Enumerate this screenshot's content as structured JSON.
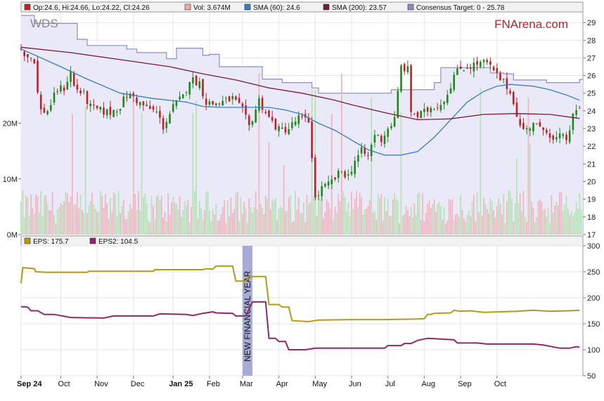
{
  "brand": {
    "logo_text": "FNArena.com",
    "logo_color": "#c0202a"
  },
  "chart_data": [
    {
      "type": "candlestick",
      "ticker": "WDS",
      "legend": [
        {
          "swatch_color": "#c0202a",
          "text": "Op:24.6, Hi:24.66, Lo:24.22, Cl:24.26"
        },
        {
          "swatch_color": "#f2a8a8",
          "text": "Vol: 3.674M"
        },
        {
          "swatch_color": "#3a7fc0",
          "text": "SMA (60): 24.6"
        },
        {
          "swatch_color": "#7a1a3a",
          "text": "SMA (200): 23.57"
        },
        {
          "swatch_color": "#8a8fc0",
          "text": "Consensus Target: 0 - 25.78"
        }
      ],
      "y_ticks": [
        17,
        18,
        19,
        20,
        21,
        22,
        23,
        24,
        25,
        26,
        27,
        28,
        29
      ],
      "ylim": [
        17,
        29.6
      ],
      "volume_ticks": [
        "0M",
        "10M",
        "20M"
      ],
      "volume_ylim": [
        0,
        40
      ],
      "last_close": 24.26,
      "sma60_last": 24.6,
      "sma200_last": 23.57,
      "consensus_target_last": 25.78,
      "consensus_target_upper": [
        [
          0,
          29.4
        ],
        [
          8,
          28.95
        ],
        [
          34,
          28.05
        ],
        [
          40,
          27.7
        ],
        [
          52,
          27.7
        ],
        [
          64,
          27.5
        ],
        [
          70,
          27.3
        ],
        [
          86,
          27.3
        ],
        [
          88,
          26.95
        ],
        [
          94,
          27.55
        ],
        [
          110,
          27.15
        ],
        [
          114,
          27.2
        ],
        [
          120,
          26.5
        ],
        [
          132,
          26.5
        ],
        [
          142,
          26.5
        ],
        [
          146,
          25.8
        ],
        [
          158,
          25.6
        ],
        [
          176,
          25.3
        ],
        [
          180,
          25.0
        ],
        [
          210,
          25.0
        ],
        [
          214,
          25.0
        ],
        [
          224,
          25.2
        ],
        [
          246,
          25.2
        ],
        [
          250,
          25.6
        ],
        [
          254,
          26.45
        ],
        [
          268,
          26.45
        ],
        [
          276,
          26.45
        ],
        [
          284,
          26.15
        ],
        [
          292,
          26.1
        ],
        [
          298,
          25.75
        ],
        [
          318,
          25.6
        ],
        [
          322,
          25.6
        ],
        [
          334,
          25.6
        ],
        [
          338,
          25.78
        ]
      ],
      "close_series": [
        [
          0,
          27.5
        ],
        [
          4,
          27.1
        ],
        [
          8,
          26.9
        ],
        [
          10,
          25.0
        ],
        [
          12,
          24.0
        ],
        [
          16,
          24.0
        ],
        [
          22,
          25.2
        ],
        [
          26,
          25.3
        ],
        [
          30,
          26.2
        ],
        [
          32,
          25.4
        ],
        [
          38,
          24.9
        ],
        [
          42,
          24.2
        ],
        [
          48,
          24.0
        ],
        [
          54,
          23.9
        ],
        [
          60,
          24.3
        ],
        [
          64,
          24.9
        ],
        [
          68,
          24.8
        ],
        [
          72,
          24.4
        ],
        [
          76,
          24.2
        ],
        [
          82,
          23.9
        ],
        [
          86,
          23.1
        ],
        [
          92,
          24.2
        ],
        [
          98,
          24.8
        ],
        [
          102,
          25.8
        ],
        [
          108,
          25.6
        ],
        [
          112,
          24.5
        ],
        [
          116,
          24.4
        ],
        [
          122,
          24.5
        ],
        [
          128,
          24.7
        ],
        [
          134,
          24.0
        ],
        [
          138,
          23.1
        ],
        [
          144,
          24.6
        ],
        [
          150,
          23.6
        ],
        [
          156,
          22.9
        ],
        [
          162,
          23.0
        ],
        [
          168,
          23.6
        ],
        [
          174,
          23.4
        ],
        [
          176,
          21.5
        ],
        [
          178,
          19.0
        ],
        [
          182,
          19.6
        ],
        [
          186,
          19.8
        ],
        [
          190,
          20.2
        ],
        [
          194,
          20.6
        ],
        [
          198,
          20.3
        ],
        [
          202,
          21.2
        ],
        [
          206,
          21.7
        ],
        [
          210,
          21.4
        ],
        [
          214,
          22.7
        ],
        [
          218,
          22.4
        ],
        [
          222,
          23.0
        ],
        [
          226,
          23.5
        ],
        [
          230,
          26.5
        ],
        [
          234,
          26.3
        ],
        [
          236,
          24.0
        ],
        [
          240,
          23.7
        ],
        [
          244,
          23.9
        ],
        [
          248,
          24.2
        ],
        [
          254,
          24.4
        ],
        [
          258,
          25.0
        ],
        [
          262,
          26.0
        ],
        [
          266,
          26.4
        ],
        [
          270,
          26.5
        ],
        [
          274,
          26.6
        ],
        [
          278,
          26.7
        ],
        [
          282,
          26.7
        ],
        [
          286,
          26.2
        ],
        [
          290,
          25.8
        ],
        [
          294,
          25.4
        ],
        [
          298,
          24.6
        ],
        [
          302,
          23.1
        ],
        [
          306,
          22.9
        ],
        [
          310,
          23.4
        ],
        [
          314,
          22.9
        ],
        [
          318,
          23.0
        ],
        [
          322,
          22.3
        ],
        [
          326,
          22.5
        ],
        [
          330,
          22.4
        ],
        [
          334,
          23.6
        ],
        [
          338,
          24.26
        ]
      ],
      "sma60": [
        [
          0,
          27.5
        ],
        [
          12,
          27.0
        ],
        [
          24,
          26.5
        ],
        [
          40,
          25.8
        ],
        [
          60,
          25.0
        ],
        [
          80,
          24.7
        ],
        [
          100,
          24.5
        ],
        [
          110,
          24.25
        ],
        [
          120,
          24.2
        ],
        [
          135,
          24.2
        ],
        [
          150,
          24.2
        ],
        [
          160,
          24.05
        ],
        [
          170,
          23.8
        ],
        [
          180,
          23.3
        ],
        [
          190,
          22.9
        ],
        [
          200,
          22.35
        ],
        [
          210,
          21.8
        ],
        [
          220,
          21.5
        ],
        [
          230,
          21.5
        ],
        [
          240,
          21.7
        ],
        [
          250,
          22.5
        ],
        [
          260,
          23.5
        ],
        [
          270,
          24.5
        ],
        [
          280,
          25.1
        ],
        [
          288,
          25.4
        ],
        [
          296,
          25.5
        ],
        [
          310,
          25.4
        ],
        [
          320,
          25.2
        ],
        [
          330,
          24.9
        ],
        [
          338,
          24.6
        ]
      ],
      "sma200": [
        [
          0,
          27.6
        ],
        [
          30,
          27.3
        ],
        [
          60,
          26.9
        ],
        [
          90,
          26.5
        ],
        [
          110,
          26.1
        ],
        [
          130,
          25.75
        ],
        [
          150,
          25.3
        ],
        [
          170,
          25.0
        ],
        [
          190,
          24.6
        ],
        [
          200,
          24.35
        ],
        [
          220,
          23.9
        ],
        [
          240,
          23.5
        ],
        [
          260,
          23.55
        ],
        [
          280,
          23.8
        ],
        [
          300,
          23.85
        ],
        [
          320,
          23.8
        ],
        [
          338,
          23.57
        ]
      ],
      "x_ticks": [
        {
          "label": "Sep 24",
          "at": 0,
          "bold": true
        },
        {
          "label": "Oct",
          "at": 24,
          "bold": false
        },
        {
          "label": "Nov",
          "at": 46,
          "bold": false
        },
        {
          "label": "Dec",
          "at": 68,
          "bold": false
        },
        {
          "label": "Jan 25",
          "at": 92,
          "bold": true
        },
        {
          "label": "Feb",
          "at": 114,
          "bold": false
        },
        {
          "label": "Mar",
          "at": 134,
          "bold": false
        },
        {
          "label": "Apr",
          "at": 156,
          "bold": false
        },
        {
          "label": "May",
          "at": 178,
          "bold": false
        },
        {
          "label": "Jun",
          "at": 200,
          "bold": false
        },
        {
          "label": "Jul",
          "at": 222,
          "bold": false
        },
        {
          "label": "Aug",
          "at": 244,
          "bold": false
        },
        {
          "label": "Sep",
          "at": 266,
          "bold": false
        },
        {
          "label": "Oct",
          "at": 288,
          "bold": false
        }
      ],
      "x_range": [
        0,
        340
      ]
    },
    {
      "type": "line",
      "legend": [
        {
          "swatch_color": "#b39b18",
          "text": "EPS: 175.7"
        },
        {
          "swatch_color": "#8a2a6a",
          "text": "EPS2: 104.5"
        }
      ],
      "y_ticks": [
        50,
        100,
        150,
        200,
        250,
        300
      ],
      "ylim": [
        50,
        300
      ],
      "annotation": "NEW FINANCIAL YEAR",
      "annotation_at": 137,
      "series": [
        {
          "color": "#b39b18",
          "points": [
            [
              0,
              228
            ],
            [
              1,
              258
            ],
            [
              8,
              256
            ],
            [
              9,
              250
            ],
            [
              16,
              249
            ],
            [
              40,
              249
            ],
            [
              41,
              251
            ],
            [
              48,
              251
            ],
            [
              80,
              251
            ],
            [
              81,
              254
            ],
            [
              110,
              254
            ],
            [
              112,
              256
            ],
            [
              116,
              255
            ],
            [
              118,
              261
            ],
            [
              128,
              261
            ],
            [
              130,
              232
            ],
            [
              136,
              232
            ],
            [
              138,
              241
            ],
            [
              148,
              241
            ],
            [
              150,
              187
            ],
            [
              156,
              187
            ],
            [
              158,
              182
            ],
            [
              162,
              182
            ],
            [
              164,
              156
            ],
            [
              174,
              154
            ],
            [
              180,
              157
            ],
            [
              200,
              158
            ],
            [
              220,
              158
            ],
            [
              240,
              159
            ],
            [
              244,
              160
            ],
            [
              246,
              168
            ],
            [
              248,
              168
            ],
            [
              250,
              170
            ],
            [
              260,
              171
            ],
            [
              262,
              176
            ],
            [
              266,
              174
            ],
            [
              272,
              175
            ],
            [
              280,
              172
            ],
            [
              300,
              174
            ],
            [
              310,
              176
            ],
            [
              320,
              174
            ],
            [
              338,
              175.7
            ]
          ]
        },
        {
          "color": "#8a2a6a",
          "points": [
            [
              0,
              183
            ],
            [
              4,
              182
            ],
            [
              6,
              175
            ],
            [
              10,
              175
            ],
            [
              14,
              168
            ],
            [
              20,
              168
            ],
            [
              30,
              162
            ],
            [
              50,
              161
            ],
            [
              56,
              165
            ],
            [
              80,
              165
            ],
            [
              84,
              169
            ],
            [
              100,
              168
            ],
            [
              104,
              166
            ],
            [
              110,
              170
            ],
            [
              116,
              173
            ],
            [
              118,
              171
            ],
            [
              128,
              170
            ],
            [
              130,
              165
            ],
            [
              136,
              165
            ],
            [
              140,
              192
            ],
            [
              148,
              192
            ],
            [
              150,
              122
            ],
            [
              154,
              122
            ],
            [
              156,
              116
            ],
            [
              160,
              116
            ],
            [
              162,
              100
            ],
            [
              172,
              100
            ],
            [
              178,
              103
            ],
            [
              200,
              103
            ],
            [
              220,
              103
            ],
            [
              222,
              108
            ],
            [
              230,
              108
            ],
            [
              232,
              112
            ],
            [
              236,
              112
            ],
            [
              240,
              118
            ],
            [
              246,
              122
            ],
            [
              252,
              121
            ],
            [
              262,
              119
            ],
            [
              264,
              113
            ],
            [
              276,
              113
            ],
            [
              282,
              111
            ],
            [
              300,
              111
            ],
            [
              310,
              111
            ],
            [
              316,
              109
            ],
            [
              326,
              103
            ],
            [
              332,
              103
            ],
            [
              336,
              106
            ],
            [
              338,
              104.5
            ]
          ]
        }
      ]
    }
  ]
}
